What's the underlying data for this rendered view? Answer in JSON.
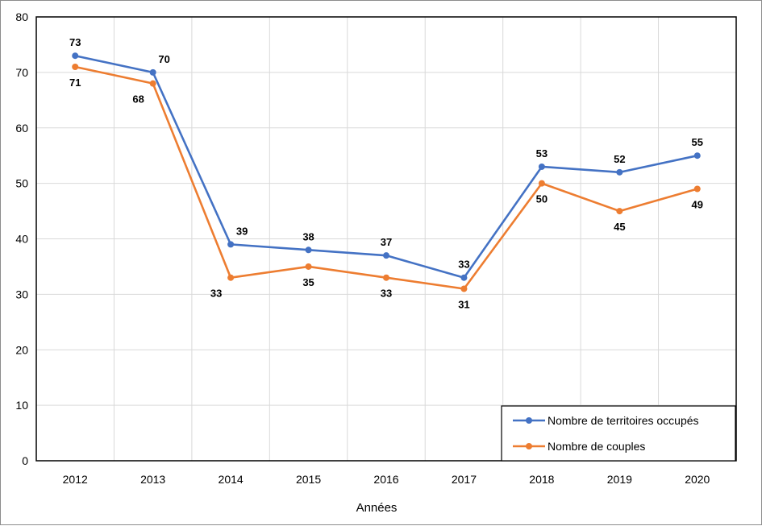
{
  "chart_data": {
    "type": "line",
    "title": "",
    "xlabel": "Années",
    "ylabel": "",
    "x": [
      "2012",
      "2013",
      "2014",
      "2015",
      "2016",
      "2017",
      "2018",
      "2019",
      "2020"
    ],
    "ylim": [
      0,
      80
    ],
    "yticks": [
      0,
      10,
      20,
      30,
      40,
      50,
      60,
      70,
      80
    ],
    "grid": true,
    "legend_position": "bottom-right",
    "series": [
      {
        "name": "Nombre de territoires occupés",
        "color": "#4472C4",
        "values": [
          73,
          70,
          39,
          38,
          37,
          33,
          53,
          52,
          55
        ]
      },
      {
        "name": "Nombre de couples",
        "color": "#ED7D31",
        "values": [
          71,
          68,
          33,
          35,
          33,
          31,
          50,
          45,
          49
        ]
      }
    ]
  }
}
